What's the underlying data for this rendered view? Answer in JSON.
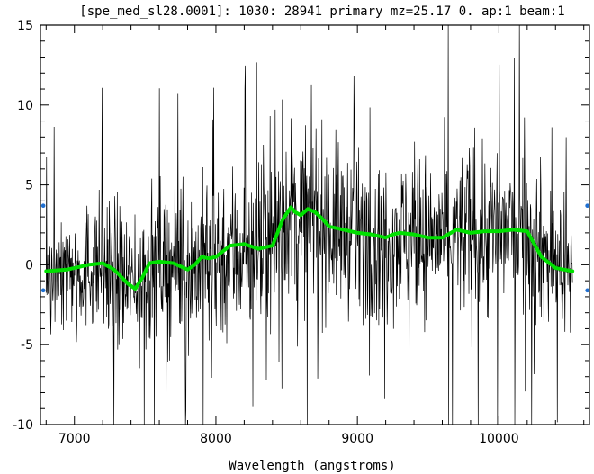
{
  "chart_data": {
    "type": "line",
    "title": "[spe_med_sl28.0001]: 1030: 28941 primary mz=25.17 0. ap:1 beam:1",
    "xlabel": "Wavelength (angstroms)",
    "ylabel": "",
    "xlim": [
      6760,
      10640
    ],
    "ylim": [
      -10,
      15
    ],
    "xticks": [
      7000,
      8000,
      9000,
      10000
    ],
    "xtick_labels": [
      "7000",
      "8000",
      "9000",
      "10000"
    ],
    "yticks": [
      -10,
      -5,
      0,
      5,
      10,
      15
    ],
    "ytick_labels": [
      "-10",
      "-5",
      "0",
      "5",
      "10",
      "15"
    ],
    "grid": false,
    "colors": {
      "spectrum": "#000000",
      "continuum": "#00e000",
      "markers": "#1f6fd0"
    },
    "series": [
      {
        "role": "spectrum",
        "x_start": 6800,
        "x_end": 10520,
        "envelope": {
          "x": [
            6800,
            7000,
            7200,
            7400,
            7500,
            7600,
            7800,
            8000,
            8200,
            8400,
            8500,
            8600,
            8700,
            8800,
            9000,
            9200,
            9400,
            9600,
            9800,
            10000,
            10200,
            10400,
            10520
          ],
          "mean": [
            -0.4,
            -0.3,
            0.1,
            -1.5,
            -0.5,
            0.2,
            -0.3,
            0.5,
            1.0,
            1.2,
            3.6,
            3.0,
            3.4,
            2.4,
            2.0,
            1.7,
            1.9,
            1.7,
            2.0,
            2.1,
            2.1,
            0.0,
            -0.4
          ],
          "spread": [
            2.2,
            3.0,
            3.5,
            4.0,
            4.0,
            4.0,
            4.0,
            4.5,
            4.5,
            4.5,
            4.5,
            4.5,
            4.5,
            4.5,
            4.0,
            4.0,
            4.0,
            4.0,
            4.5,
            4.5,
            4.5,
            3.5,
            2.0
          ]
        }
      },
      {
        "role": "continuum",
        "x": [
          6800,
          6950,
          7100,
          7200,
          7280,
          7380,
          7430,
          7480,
          7530,
          7600,
          7700,
          7800,
          7850,
          7900,
          7950,
          8000,
          8100,
          8200,
          8300,
          8400,
          8470,
          8530,
          8560,
          8600,
          8650,
          8700,
          8750,
          8800,
          8900,
          9000,
          9100,
          9200,
          9250,
          9300,
          9400,
          9500,
          9600,
          9700,
          9800,
          9900,
          10000,
          10100,
          10200,
          10300,
          10400,
          10520
        ],
        "y": [
          -0.4,
          -0.3,
          0.0,
          0.1,
          -0.3,
          -1.2,
          -1.5,
          -0.8,
          0.1,
          0.2,
          0.1,
          -0.3,
          0.0,
          0.5,
          0.4,
          0.5,
          1.2,
          1.3,
          1.0,
          1.2,
          2.8,
          3.6,
          3.3,
          3.1,
          3.5,
          3.3,
          2.9,
          2.4,
          2.2,
          2.0,
          1.9,
          1.7,
          1.9,
          2.0,
          1.9,
          1.7,
          1.7,
          2.2,
          2.0,
          2.1,
          2.1,
          2.2,
          2.1,
          0.5,
          -0.2,
          -0.4
        ]
      }
    ],
    "markers": [
      {
        "x": 6780,
        "y": 3.7
      },
      {
        "x": 6780,
        "y": -1.6
      },
      {
        "x": 10625,
        "y": 3.7
      },
      {
        "x": 10625,
        "y": -1.6
      }
    ]
  }
}
